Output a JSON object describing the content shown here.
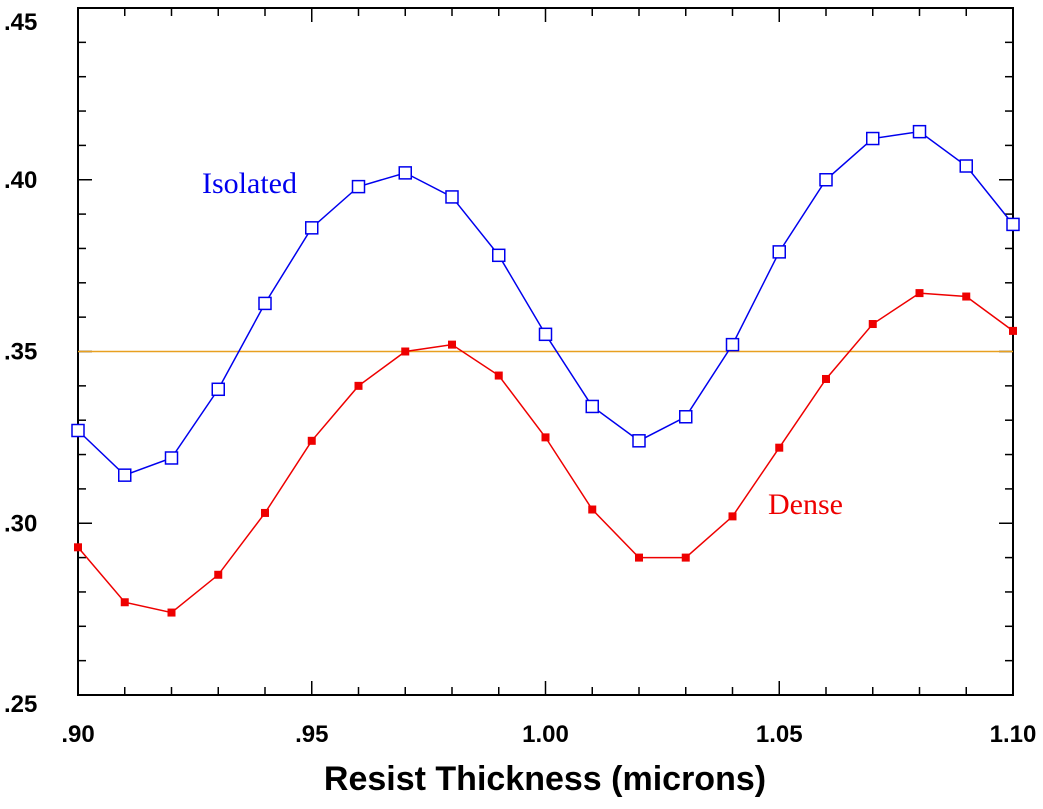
{
  "chart_data": {
    "type": "line",
    "title": "",
    "xlabel": "Resist Thickness (microns)",
    "ylabel": "",
    "xlim": [
      0.9,
      1.1
    ],
    "ylim": [
      0.25,
      0.45
    ],
    "x_ticks": [
      0.9,
      0.95,
      1.0,
      1.05,
      1.1
    ],
    "x_tick_labels": [
      ".90",
      ".95",
      "1.00",
      "1.05",
      "1.10"
    ],
    "y_ticks": [
      0.25,
      0.3,
      0.35,
      0.4,
      0.45
    ],
    "y_tick_labels": [
      ".25",
      ".30",
      ".35",
      ".40",
      ".45"
    ],
    "grid": false,
    "reference_line": {
      "y": 0.35,
      "color": "#e8a020"
    },
    "x": [
      0.9,
      0.91,
      0.92,
      0.93,
      0.94,
      0.95,
      0.96,
      0.97,
      0.98,
      0.99,
      1.0,
      1.01,
      1.02,
      1.03,
      1.04,
      1.05,
      1.06,
      1.07,
      1.08,
      1.09,
      1.1
    ],
    "series": [
      {
        "name": "Isolated",
        "color": "#0000ee",
        "marker": "open-square",
        "values": [
          0.327,
          0.314,
          0.319,
          0.339,
          0.364,
          0.386,
          0.398,
          0.402,
          0.395,
          0.378,
          0.355,
          0.334,
          0.324,
          0.331,
          0.352,
          0.379,
          0.4,
          0.412,
          0.414,
          0.404,
          0.387
        ]
      },
      {
        "name": "Dense",
        "color": "#ee0000",
        "marker": "filled-square",
        "values": [
          0.293,
          0.277,
          0.274,
          0.285,
          0.303,
          0.324,
          0.34,
          0.35,
          0.352,
          0.343,
          0.325,
          0.304,
          0.29,
          0.29,
          0.302,
          0.322,
          0.342,
          0.358,
          0.367,
          0.366,
          0.356
        ]
      }
    ]
  }
}
